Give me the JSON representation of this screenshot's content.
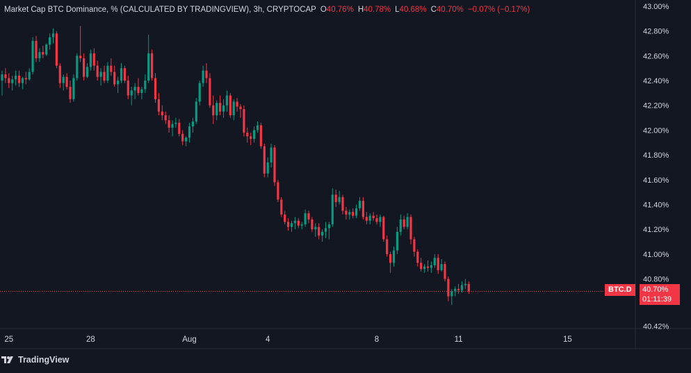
{
  "header": {
    "title": "Market Cap BTC Dominance, % (CALCULATED BY TRADINGVIEW), 3h, CRYPTOCAP",
    "o_label": "O",
    "o_value": "40.76%",
    "h_label": "H",
    "h_value": "40.78%",
    "l_label": "L",
    "l_value": "40.68%",
    "c_label": "C",
    "c_value": "40.70%",
    "change": "−0.07% (−0.17%)"
  },
  "price_tag": {
    "symbol": "BTC.D",
    "price": "40.70%",
    "countdown": "01:11:39"
  },
  "brand": {
    "name": "TradingView"
  },
  "colors": {
    "background": "#131722",
    "up": "#089981",
    "down": "#f23645",
    "text": "#d1d4dc",
    "grid_border": "#2a2e39"
  },
  "chart_data": {
    "type": "candlestick",
    "title": "Market Cap BTC Dominance, % (CALCULATED BY TRADINGVIEW)",
    "interval": "3h",
    "ylim": [
      40.4,
      43.05
    ],
    "yticks": [
      "43.00%",
      "42.80%",
      "42.60%",
      "42.40%",
      "42.20%",
      "42.00%",
      "41.80%",
      "41.60%",
      "41.40%",
      "41.20%",
      "41.00%",
      "40.80%",
      "40.42%"
    ],
    "ytick_values": [
      43.0,
      42.8,
      42.6,
      42.4,
      42.2,
      42.0,
      41.8,
      41.6,
      41.4,
      41.2,
      41.0,
      40.8,
      40.42
    ],
    "xticks": [
      {
        "label": "25",
        "index": 2
      },
      {
        "label": "28",
        "index": 26
      },
      {
        "label": "Aug",
        "index": 55
      },
      {
        "label": "4",
        "index": 78
      },
      {
        "label": "8",
        "index": 110
      },
      {
        "label": "11",
        "index": 134
      },
      {
        "label": "15",
        "index": 166
      }
    ],
    "last_price": 40.7,
    "ohlc": [
      [
        42.4,
        42.48,
        42.28,
        42.45
      ],
      [
        42.45,
        42.5,
        42.38,
        42.42
      ],
      [
        42.42,
        42.46,
        42.34,
        42.38
      ],
      [
        42.38,
        42.44,
        42.32,
        42.41
      ],
      [
        42.41,
        42.48,
        42.36,
        42.44
      ],
      [
        42.44,
        42.48,
        42.35,
        42.38
      ],
      [
        42.38,
        42.43,
        42.33,
        42.42
      ],
      [
        42.42,
        42.47,
        42.37,
        42.41
      ],
      [
        42.41,
        42.5,
        42.4,
        42.47
      ],
      [
        42.47,
        42.75,
        42.45,
        42.72
      ],
      [
        42.72,
        42.76,
        42.55,
        42.58
      ],
      [
        42.58,
        42.66,
        42.55,
        42.63
      ],
      [
        42.63,
        42.68,
        42.58,
        42.61
      ],
      [
        42.61,
        42.7,
        42.6,
        42.69
      ],
      [
        42.69,
        42.78,
        42.65,
        42.75
      ],
      [
        42.75,
        42.82,
        42.7,
        42.78
      ],
      [
        42.78,
        42.8,
        42.5,
        42.52
      ],
      [
        42.52,
        42.54,
        42.34,
        42.38
      ],
      [
        42.38,
        42.45,
        42.32,
        42.43
      ],
      [
        42.43,
        42.46,
        42.33,
        42.35
      ],
      [
        42.35,
        42.4,
        42.22,
        42.25
      ],
      [
        42.25,
        42.45,
        42.23,
        42.42
      ],
      [
        42.42,
        42.62,
        42.4,
        42.6
      ],
      [
        42.6,
        42.84,
        42.55,
        42.58
      ],
      [
        42.58,
        42.62,
        42.4,
        42.43
      ],
      [
        42.43,
        42.54,
        42.42,
        42.51
      ],
      [
        42.51,
        42.65,
        42.48,
        42.62
      ],
      [
        42.62,
        42.66,
        42.48,
        42.52
      ],
      [
        42.52,
        42.56,
        42.4,
        42.43
      ],
      [
        42.43,
        42.5,
        42.36,
        42.47
      ],
      [
        42.47,
        42.52,
        42.38,
        42.4
      ],
      [
        42.4,
        42.55,
        42.38,
        42.52
      ],
      [
        42.52,
        42.58,
        42.44,
        42.47
      ],
      [
        42.47,
        42.52,
        42.35,
        42.37
      ],
      [
        42.37,
        42.43,
        42.3,
        42.4
      ],
      [
        42.4,
        42.54,
        42.38,
        42.5
      ],
      [
        42.5,
        42.52,
        42.38,
        42.4
      ],
      [
        42.4,
        42.44,
        42.25,
        42.28
      ],
      [
        42.28,
        42.35,
        42.2,
        42.32
      ],
      [
        42.32,
        42.38,
        42.25,
        42.35
      ],
      [
        42.35,
        42.42,
        42.28,
        42.3
      ],
      [
        42.3,
        42.35,
        42.25,
        42.33
      ],
      [
        42.33,
        42.45,
        42.3,
        42.4
      ],
      [
        42.4,
        42.77,
        42.38,
        42.62
      ],
      [
        42.62,
        42.65,
        42.4,
        42.42
      ],
      [
        42.42,
        42.46,
        42.22,
        42.25
      ],
      [
        42.25,
        42.3,
        42.12,
        42.15
      ],
      [
        42.15,
        42.2,
        42.08,
        42.12
      ],
      [
        42.12,
        42.15,
        42.05,
        42.08
      ],
      [
        42.08,
        42.12,
        41.98,
        42.02
      ],
      [
        42.02,
        42.08,
        41.95,
        42.05
      ],
      [
        42.05,
        42.1,
        42.02,
        42.06
      ],
      [
        42.06,
        42.09,
        41.95,
        41.97
      ],
      [
        41.97,
        42.0,
        41.88,
        41.91
      ],
      [
        41.91,
        41.95,
        41.87,
        41.94
      ],
      [
        41.94,
        42.06,
        41.9,
        42.03
      ],
      [
        42.03,
        42.1,
        41.98,
        42.07
      ],
      [
        42.07,
        42.26,
        42.05,
        42.23
      ],
      [
        42.23,
        42.4,
        42.2,
        42.38
      ],
      [
        42.38,
        42.52,
        42.35,
        42.48
      ],
      [
        42.48,
        42.54,
        42.38,
        42.42
      ],
      [
        42.42,
        42.46,
        42.18,
        42.2
      ],
      [
        42.2,
        42.28,
        42.05,
        42.12
      ],
      [
        42.12,
        42.24,
        42.08,
        42.22
      ],
      [
        42.22,
        42.28,
        42.12,
        42.15
      ],
      [
        42.15,
        42.25,
        42.1,
        42.2
      ],
      [
        42.2,
        42.32,
        42.15,
        42.28
      ],
      [
        42.28,
        42.3,
        42.1,
        42.12
      ],
      [
        42.12,
        42.25,
        42.08,
        42.23
      ],
      [
        42.23,
        42.26,
        42.15,
        42.19
      ],
      [
        42.19,
        42.21,
        42.1,
        42.17
      ],
      [
        42.17,
        42.2,
        41.95,
        41.98
      ],
      [
        41.98,
        42.02,
        41.9,
        41.95
      ],
      [
        41.95,
        41.98,
        41.88,
        41.93
      ],
      [
        41.93,
        42.03,
        41.9,
        42.0
      ],
      [
        42.0,
        42.07,
        41.98,
        42.04
      ],
      [
        42.04,
        42.06,
        41.85,
        41.87
      ],
      [
        41.87,
        41.89,
        41.62,
        41.65
      ],
      [
        41.65,
        41.78,
        41.62,
        41.74
      ],
      [
        41.74,
        41.89,
        41.7,
        41.86
      ],
      [
        41.86,
        41.88,
        41.55,
        41.58
      ],
      [
        41.58,
        41.6,
        41.42,
        41.44
      ],
      [
        41.44,
        41.46,
        41.3,
        41.32
      ],
      [
        41.32,
        41.35,
        41.24,
        41.26
      ],
      [
        41.26,
        41.29,
        41.19,
        41.22
      ],
      [
        41.22,
        41.27,
        41.18,
        41.25
      ],
      [
        41.25,
        41.3,
        41.2,
        41.27
      ],
      [
        41.27,
        41.29,
        41.21,
        41.23
      ],
      [
        41.23,
        41.26,
        41.2,
        41.24
      ],
      [
        41.24,
        41.36,
        41.22,
        41.33
      ],
      [
        41.33,
        41.35,
        41.25,
        41.28
      ],
      [
        41.28,
        41.3,
        41.18,
        41.2
      ],
      [
        41.2,
        41.25,
        41.14,
        41.22
      ],
      [
        41.22,
        41.25,
        41.12,
        41.15
      ],
      [
        41.15,
        41.2,
        41.1,
        41.18
      ],
      [
        41.18,
        41.26,
        41.13,
        41.21
      ],
      [
        41.21,
        41.26,
        41.12,
        41.24
      ],
      [
        41.24,
        41.53,
        41.22,
        41.48
      ],
      [
        41.48,
        41.52,
        41.38,
        41.42
      ],
      [
        41.42,
        41.51,
        41.4,
        41.46
      ],
      [
        41.46,
        41.48,
        41.32,
        41.35
      ],
      [
        41.35,
        41.38,
        41.28,
        41.32
      ],
      [
        41.32,
        41.36,
        41.28,
        41.34
      ],
      [
        41.34,
        41.37,
        41.29,
        41.31
      ],
      [
        41.31,
        41.4,
        41.29,
        41.37
      ],
      [
        41.37,
        41.46,
        41.35,
        41.43
      ],
      [
        41.43,
        41.46,
        41.28,
        41.3
      ],
      [
        41.3,
        41.34,
        41.24,
        41.27
      ],
      [
        41.27,
        41.33,
        41.24,
        41.31
      ],
      [
        41.31,
        41.34,
        41.27,
        41.29
      ],
      [
        41.29,
        41.32,
        41.24,
        41.26
      ],
      [
        41.26,
        41.32,
        41.22,
        41.3
      ],
      [
        41.3,
        41.31,
        41.1,
        41.12
      ],
      [
        41.12,
        41.15,
        40.98,
        41.0
      ],
      [
        41.0,
        41.02,
        40.85,
        40.93
      ],
      [
        40.93,
        41.06,
        40.9,
        41.03
      ],
      [
        41.03,
        41.22,
        41.0,
        41.18
      ],
      [
        41.18,
        41.32,
        41.15,
        41.28
      ],
      [
        41.28,
        41.31,
        41.2,
        41.22
      ],
      [
        41.22,
        41.33,
        41.2,
        41.3
      ],
      [
        41.3,
        41.32,
        41.08,
        41.12
      ],
      [
        41.12,
        41.14,
        40.98,
        41.02
      ],
      [
        41.02,
        41.04,
        40.9,
        40.93
      ],
      [
        40.93,
        40.97,
        40.86,
        40.88
      ],
      [
        40.88,
        40.92,
        40.85,
        40.9
      ],
      [
        40.9,
        40.95,
        40.86,
        40.89
      ],
      [
        40.89,
        40.94,
        40.85,
        40.91
      ],
      [
        40.91,
        41.0,
        40.89,
        40.97
      ],
      [
        40.97,
        41.0,
        40.84,
        40.87
      ],
      [
        40.87,
        40.96,
        40.86,
        40.92
      ],
      [
        40.92,
        40.94,
        40.78,
        40.8
      ],
      [
        40.8,
        40.82,
        40.62,
        40.66
      ],
      [
        40.66,
        40.72,
        40.59,
        40.7
      ],
      [
        40.7,
        40.74,
        40.66,
        40.72
      ],
      [
        40.72,
        40.76,
        40.68,
        40.71
      ],
      [
        40.71,
        40.78,
        40.69,
        40.75
      ],
      [
        40.75,
        40.8,
        40.72,
        40.76
      ],
      [
        40.76,
        40.78,
        40.68,
        40.7
      ]
    ]
  }
}
